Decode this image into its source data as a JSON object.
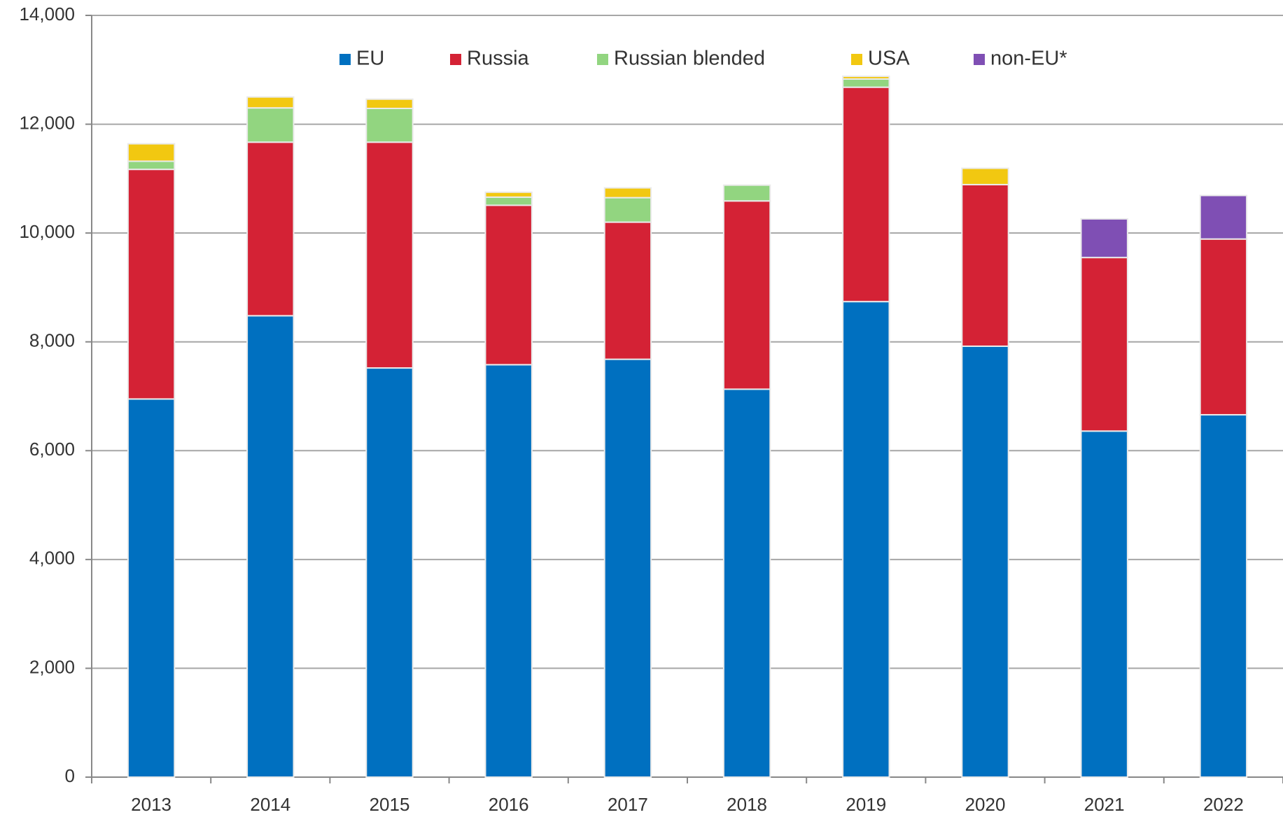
{
  "chart_data": {
    "type": "stacked_bar",
    "categories": [
      "2013",
      "2014",
      "2015",
      "2016",
      "2017",
      "2018",
      "2019",
      "2020",
      "2021",
      "2022"
    ],
    "series": [
      {
        "name": "EU",
        "color": "#0070c0",
        "values": [
          6950,
          8480,
          7520,
          7580,
          7680,
          7130,
          8740,
          7920,
          6360,
          6660
        ]
      },
      {
        "name": "Russia",
        "color": "#d42235",
        "values": [
          4220,
          3190,
          4150,
          2930,
          2520,
          3460,
          3940,
          2970,
          3190,
          3230
        ]
      },
      {
        "name": "Russian blended",
        "color": "#92d580",
        "values": [
          150,
          630,
          620,
          150,
          450,
          290,
          150,
          null,
          null,
          null
        ]
      },
      {
        "name": "USA",
        "color": "#f2c811",
        "values": [
          320,
          200,
          170,
          90,
          180,
          null,
          50,
          300,
          null,
          null
        ]
      },
      {
        "name": "non-EU*",
        "color": "#7f4fb4",
        "values": [
          null,
          null,
          null,
          null,
          null,
          null,
          null,
          null,
          710,
          800
        ]
      }
    ],
    "ylim": [
      0,
      14000
    ],
    "yticks": [
      0,
      {
        "value": 2000,
        "label": "2,000"
      },
      {
        "value": 4000,
        "label": "4,000"
      },
      {
        "value": 6000,
        "label": "6,000"
      },
      {
        "value": 8000,
        "label": "8,000"
      },
      {
        "value": 10000,
        "label": "10,000"
      },
      {
        "value": 12000,
        "label": "12,000"
      },
      {
        "value": 14000,
        "label": "14,000"
      }
    ],
    "grid": true,
    "legend": "top"
  }
}
